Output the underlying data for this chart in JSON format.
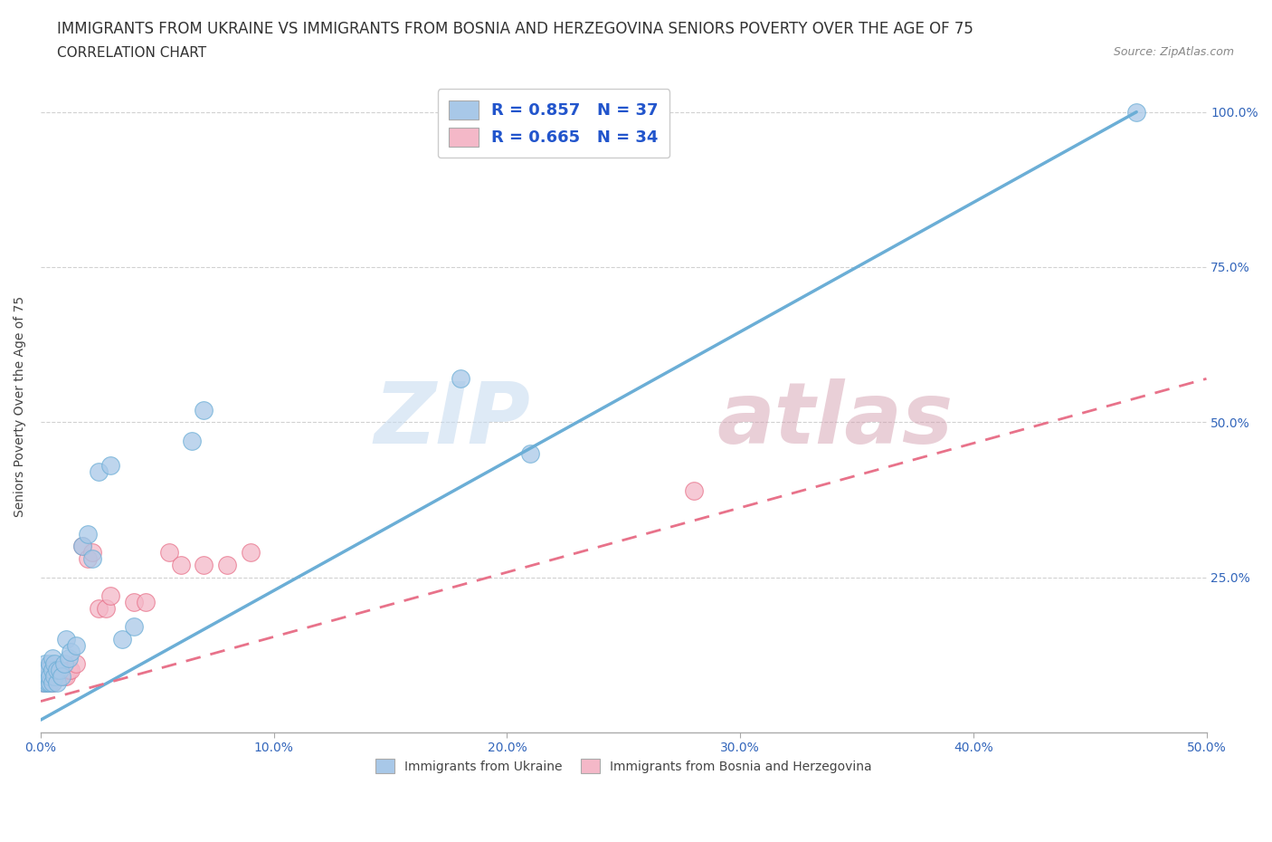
{
  "title_line1": "IMMIGRANTS FROM UKRAINE VS IMMIGRANTS FROM BOSNIA AND HERZEGOVINA SENIORS POVERTY OVER THE AGE OF 75",
  "title_line2": "CORRELATION CHART",
  "source_text": "Source: ZipAtlas.com",
  "ylabel": "Seniors Poverty Over the Age of 75",
  "xlim": [
    0.0,
    0.5
  ],
  "ylim": [
    0.0,
    1.05
  ],
  "xtick_labels": [
    "0.0%",
    "10.0%",
    "20.0%",
    "30.0%",
    "40.0%",
    "50.0%"
  ],
  "xtick_vals": [
    0.0,
    0.1,
    0.2,
    0.3,
    0.4,
    0.5
  ],
  "ytick_labels": [
    "25.0%",
    "50.0%",
    "75.0%",
    "100.0%"
  ],
  "ytick_vals": [
    0.25,
    0.5,
    0.75,
    1.0
  ],
  "ukraine_color": "#6baed6",
  "ukraine_color_scatter": "#a8c8e8",
  "bosnia_color": "#e8728a",
  "bosnia_color_scatter": "#f4b8c8",
  "ukraine_R": 0.857,
  "ukraine_N": 37,
  "bosnia_R": 0.665,
  "bosnia_N": 34,
  "ukraine_scatter_x": [
    0.001,
    0.001,
    0.002,
    0.002,
    0.002,
    0.003,
    0.003,
    0.003,
    0.004,
    0.004,
    0.004,
    0.005,
    0.005,
    0.005,
    0.006,
    0.006,
    0.007,
    0.007,
    0.008,
    0.009,
    0.01,
    0.011,
    0.012,
    0.013,
    0.015,
    0.018,
    0.02,
    0.022,
    0.025,
    0.03,
    0.035,
    0.04,
    0.065,
    0.07,
    0.18,
    0.21,
    0.47
  ],
  "ukraine_scatter_y": [
    0.08,
    0.09,
    0.08,
    0.1,
    0.11,
    0.08,
    0.09,
    0.1,
    0.08,
    0.09,
    0.11,
    0.08,
    0.1,
    0.12,
    0.09,
    0.11,
    0.08,
    0.1,
    0.1,
    0.09,
    0.11,
    0.15,
    0.12,
    0.13,
    0.14,
    0.3,
    0.32,
    0.28,
    0.42,
    0.43,
    0.15,
    0.17,
    0.47,
    0.52,
    0.57,
    0.45,
    1.0
  ],
  "bosnia_scatter_x": [
    0.001,
    0.001,
    0.002,
    0.002,
    0.003,
    0.003,
    0.003,
    0.004,
    0.004,
    0.005,
    0.005,
    0.006,
    0.007,
    0.008,
    0.009,
    0.01,
    0.011,
    0.012,
    0.013,
    0.015,
    0.018,
    0.02,
    0.022,
    0.025,
    0.028,
    0.03,
    0.04,
    0.045,
    0.055,
    0.06,
    0.07,
    0.08,
    0.09,
    0.28
  ],
  "bosnia_scatter_y": [
    0.08,
    0.09,
    0.08,
    0.1,
    0.08,
    0.09,
    0.1,
    0.08,
    0.09,
    0.08,
    0.1,
    0.09,
    0.1,
    0.09,
    0.09,
    0.09,
    0.09,
    0.1,
    0.1,
    0.11,
    0.3,
    0.28,
    0.29,
    0.2,
    0.2,
    0.22,
    0.21,
    0.21,
    0.29,
    0.27,
    0.27,
    0.27,
    0.29,
    0.39
  ],
  "ukraine_trendline_x": [
    0.0,
    0.47
  ],
  "ukraine_trendline_y": [
    0.02,
    1.0
  ],
  "bosnia_trendline_x": [
    0.0,
    0.5
  ],
  "bosnia_trendline_y": [
    0.05,
    0.57
  ],
  "watermark_zip": "ZIP",
  "watermark_atlas": "atlas",
  "bg_color": "#ffffff",
  "grid_color": "#cccccc",
  "legend_label_ukraine": "Immigrants from Ukraine",
  "legend_label_bosnia": "Immigrants from Bosnia and Herzegovina",
  "stat_text_color": "#2255cc",
  "title_fontsize": 12,
  "subtitle_fontsize": 11,
  "axis_label_fontsize": 10,
  "tick_fontsize": 10
}
